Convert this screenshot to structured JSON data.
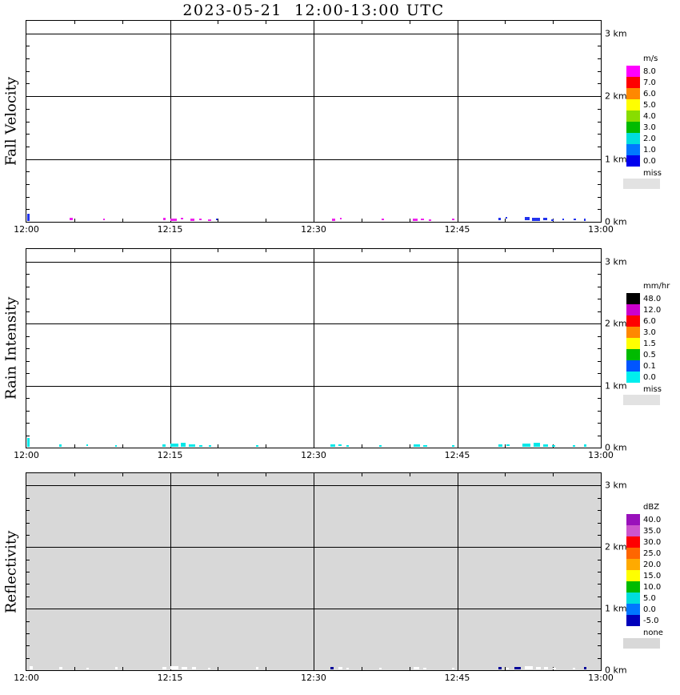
{
  "title": "2023-05-21  12:00-13:00 UTC",
  "axes": {
    "x_ticks": [
      "12:00",
      "12:15",
      "12:30",
      "12:45",
      "13:00"
    ],
    "y_ticks": [
      "0 km",
      "1 km",
      "2 km",
      "3 km"
    ]
  },
  "chart_data": [
    {
      "type": "heatmap",
      "title": "Fall Velocity",
      "ylabel": "Fall Velocity",
      "unit": "m/s",
      "x_ticks": [
        "12:00",
        "12:15",
        "12:30",
        "12:45",
        "13:00"
      ],
      "y_ticks": [
        {
          "km": 0,
          "label": "0 km"
        },
        {
          "km": 1,
          "label": "1 km"
        },
        {
          "km": 2,
          "label": "2 km"
        },
        {
          "km": 3,
          "label": "3 km"
        }
      ],
      "ylim_km": [
        0,
        3.2
      ],
      "grid": true,
      "background": "#ffffff",
      "colorbar": {
        "unit": "m/s",
        "entries": [
          {
            "label": "8.0",
            "color": "#ff00ff"
          },
          {
            "label": "7.0",
            "color": "#ff0000"
          },
          {
            "label": "6.0",
            "color": "#ff8800"
          },
          {
            "label": "5.0",
            "color": "#ffff00"
          },
          {
            "label": "4.0",
            "color": "#88dd00"
          },
          {
            "label": "3.0",
            "color": "#00bb00"
          },
          {
            "label": "2.0",
            "color": "#00dddd"
          },
          {
            "label": "1.0",
            "color": "#0077ff"
          },
          {
            "label": "0.0",
            "color": "#0000ee"
          }
        ],
        "missing": {
          "label": "miss",
          "color": "#e2e2e2"
        }
      },
      "echoes": [
        {
          "x": 0.001,
          "w": 3,
          "h": 9,
          "b": 1,
          "c": "#2233ee"
        },
        {
          "x": 0.076,
          "w": 4,
          "h": 3,
          "b": 2,
          "c": "#ee22ee"
        },
        {
          "x": 0.135,
          "w": 2,
          "h": 2,
          "b": 2,
          "c": "#ee22ee"
        },
        {
          "x": 0.24,
          "w": 3,
          "h": 3,
          "b": 2,
          "c": "#ee22ee"
        },
        {
          "x": 0.252,
          "w": 8,
          "h": 3,
          "b": 1,
          "c": "#ee22ee"
        },
        {
          "x": 0.27,
          "w": 3,
          "h": 2,
          "b": 3,
          "c": "#ee22ee"
        },
        {
          "x": 0.287,
          "w": 5,
          "h": 3,
          "b": 1,
          "c": "#ee22ee"
        },
        {
          "x": 0.302,
          "w": 3,
          "h": 2,
          "b": 2,
          "c": "#ee22ee"
        },
        {
          "x": 0.318,
          "w": 4,
          "h": 2,
          "b": 1,
          "c": "#ee22ee"
        },
        {
          "x": 0.332,
          "w": 2,
          "h": 2,
          "b": 2,
          "c": "#2233ee"
        },
        {
          "x": 0.535,
          "w": 4,
          "h": 3,
          "b": 1,
          "c": "#ee22ee"
        },
        {
          "x": 0.549,
          "w": 2,
          "h": 2,
          "b": 3,
          "c": "#ee22ee"
        },
        {
          "x": 0.622,
          "w": 3,
          "h": 2,
          "b": 2,
          "c": "#ee22ee"
        },
        {
          "x": 0.676,
          "w": 6,
          "h": 3,
          "b": 1,
          "c": "#ee22ee"
        },
        {
          "x": 0.691,
          "w": 4,
          "h": 2,
          "b": 2,
          "c": "#ee22ee"
        },
        {
          "x": 0.704,
          "w": 3,
          "h": 2,
          "b": 1,
          "c": "#ee22ee"
        },
        {
          "x": 0.745,
          "w": 3,
          "h": 2,
          "b": 2,
          "c": "#ee22ee"
        },
        {
          "x": 0.826,
          "w": 3,
          "h": 3,
          "b": 2,
          "c": "#2233ee"
        },
        {
          "x": 0.839,
          "w": 2,
          "h": 2,
          "b": 4,
          "c": "#2233ee"
        },
        {
          "x": 0.872,
          "w": 6,
          "h": 4,
          "b": 2,
          "c": "#2233ee"
        },
        {
          "x": 0.885,
          "w": 10,
          "h": 4,
          "b": 1,
          "c": "#2233ee"
        },
        {
          "x": 0.905,
          "w": 5,
          "h": 3,
          "b": 2,
          "c": "#2233ee"
        },
        {
          "x": 0.919,
          "w": 3,
          "h": 2,
          "b": 1,
          "c": "#2233ee"
        },
        {
          "x": 0.938,
          "w": 2,
          "h": 2,
          "b": 2,
          "c": "#2233ee"
        },
        {
          "x": 0.958,
          "w": 3,
          "h": 2,
          "b": 2,
          "c": "#2233ee"
        },
        {
          "x": 0.976,
          "w": 2,
          "h": 3,
          "b": 1,
          "c": "#2233ee"
        }
      ]
    },
    {
      "type": "heatmap",
      "title": "Rain Intensity",
      "ylabel": "Rain Intensity",
      "unit": "mm/hr",
      "x_ticks": [
        "12:00",
        "12:15",
        "12:30",
        "12:45",
        "13:00"
      ],
      "y_ticks": [
        {
          "km": 0,
          "label": "0 km"
        },
        {
          "km": 1,
          "label": "1 km"
        },
        {
          "km": 2,
          "label": "2 km"
        },
        {
          "km": 3,
          "label": "3 km"
        }
      ],
      "ylim_km": [
        0,
        3.2
      ],
      "grid": true,
      "background": "#ffffff",
      "colorbar": {
        "unit": "mm/hr",
        "entries": [
          {
            "label": "48.0",
            "color": "#000000"
          },
          {
            "label": "12.0",
            "color": "#cc00cc"
          },
          {
            "label": "6.0",
            "color": "#ff0000"
          },
          {
            "label": "3.0",
            "color": "#ff8800"
          },
          {
            "label": "1.5",
            "color": "#ffff00"
          },
          {
            "label": "0.5",
            "color": "#00bb00"
          },
          {
            "label": "0.1",
            "color": "#0055ff"
          },
          {
            "label": "0.0",
            "color": "#00eeee"
          }
        ],
        "missing": {
          "label": "miss",
          "color": "#e2e2e2"
        }
      },
      "echoes": [
        {
          "x": 0.001,
          "w": 3,
          "h": 11,
          "b": 1,
          "c": "#00e8e8"
        },
        {
          "x": 0.058,
          "w": 3,
          "h": 3,
          "b": 1,
          "c": "#00e8e8"
        },
        {
          "x": 0.105,
          "w": 2,
          "h": 2,
          "b": 2,
          "c": "#00e8e8"
        },
        {
          "x": 0.156,
          "w": 2,
          "h": 2,
          "b": 1,
          "c": "#00e8e8"
        },
        {
          "x": 0.238,
          "w": 4,
          "h": 3,
          "b": 1,
          "c": "#00e8e8"
        },
        {
          "x": 0.252,
          "w": 10,
          "h": 4,
          "b": 1,
          "c": "#00e8e8"
        },
        {
          "x": 0.27,
          "w": 6,
          "h": 5,
          "b": 1,
          "c": "#00e8e8"
        },
        {
          "x": 0.285,
          "w": 8,
          "h": 3,
          "b": 1,
          "c": "#00e8e8"
        },
        {
          "x": 0.303,
          "w": 4,
          "h": 2,
          "b": 1,
          "c": "#00e8e8"
        },
        {
          "x": 0.32,
          "w": 3,
          "h": 2,
          "b": 1,
          "c": "#00e8e8"
        },
        {
          "x": 0.402,
          "w": 3,
          "h": 2,
          "b": 1,
          "c": "#00e8e8"
        },
        {
          "x": 0.532,
          "w": 6,
          "h": 3,
          "b": 1,
          "c": "#00e8e8"
        },
        {
          "x": 0.546,
          "w": 4,
          "h": 2,
          "b": 2,
          "c": "#00e8e8"
        },
        {
          "x": 0.56,
          "w": 3,
          "h": 2,
          "b": 1,
          "c": "#00e8e8"
        },
        {
          "x": 0.618,
          "w": 3,
          "h": 2,
          "b": 1,
          "c": "#00e8e8"
        },
        {
          "x": 0.678,
          "w": 8,
          "h": 3,
          "b": 1,
          "c": "#00e8e8"
        },
        {
          "x": 0.695,
          "w": 5,
          "h": 2,
          "b": 1,
          "c": "#00e8e8"
        },
        {
          "x": 0.745,
          "w": 3,
          "h": 2,
          "b": 1,
          "c": "#00e8e8"
        },
        {
          "x": 0.826,
          "w": 5,
          "h": 3,
          "b": 1,
          "c": "#00e8e8"
        },
        {
          "x": 0.84,
          "w": 4,
          "h": 2,
          "b": 2,
          "c": "#00e8e8"
        },
        {
          "x": 0.868,
          "w": 10,
          "h": 4,
          "b": 1,
          "c": "#00e8e8"
        },
        {
          "x": 0.888,
          "w": 8,
          "h": 5,
          "b": 1,
          "c": "#00e8e8"
        },
        {
          "x": 0.905,
          "w": 6,
          "h": 3,
          "b": 1,
          "c": "#00e8e8"
        },
        {
          "x": 0.92,
          "w": 4,
          "h": 2,
          "b": 1,
          "c": "#00e8e8"
        },
        {
          "x": 0.956,
          "w": 3,
          "h": 2,
          "b": 1,
          "c": "#00e8e8"
        },
        {
          "x": 0.976,
          "w": 3,
          "h": 3,
          "b": 1,
          "c": "#00e8e8"
        }
      ]
    },
    {
      "type": "heatmap",
      "title": "Reflectivity",
      "ylabel": "Reflectivity",
      "unit": "dBZ",
      "x_ticks": [
        "12:00",
        "12:15",
        "12:30",
        "12:45",
        "13:00"
      ],
      "y_ticks": [
        {
          "km": 0,
          "label": "0 km"
        },
        {
          "km": 1,
          "label": "1 km"
        },
        {
          "km": 2,
          "label": "2 km"
        },
        {
          "km": 3,
          "label": "3 km"
        }
      ],
      "ylim_km": [
        0,
        3.2
      ],
      "grid": true,
      "background": "#d8d8d8",
      "colorbar": {
        "unit": "dBZ",
        "entries": [
          {
            "label": "40.0",
            "color": "#9911bb"
          },
          {
            "label": "35.0",
            "color": "#cc55cc"
          },
          {
            "label": "30.0",
            "color": "#ff0000"
          },
          {
            "label": "25.0",
            "color": "#ff6600"
          },
          {
            "label": "20.0",
            "color": "#ffaa00"
          },
          {
            "label": "15.0",
            "color": "#ffff00"
          },
          {
            "label": "10.0",
            "color": "#00bb00"
          },
          {
            "label": "5.0",
            "color": "#00dddd"
          },
          {
            "label": "0.0",
            "color": "#0077ff"
          },
          {
            "label": "-5.0",
            "color": "#0000bb"
          }
        ],
        "missing": {
          "label": "none",
          "color": "#d8d8d8"
        }
      },
      "echoes": [
        {
          "x": 0.005,
          "w": 4,
          "h": 4,
          "b": 1,
          "c": "#ffffff"
        },
        {
          "x": 0.058,
          "w": 4,
          "h": 3,
          "b": 1,
          "c": "#ffffff"
        },
        {
          "x": 0.105,
          "w": 3,
          "h": 2,
          "b": 1,
          "c": "#ffffff"
        },
        {
          "x": 0.156,
          "w": 3,
          "h": 3,
          "b": 1,
          "c": "#ffffff"
        },
        {
          "x": 0.238,
          "w": 5,
          "h": 3,
          "b": 1,
          "c": "#ffffff"
        },
        {
          "x": 0.252,
          "w": 10,
          "h": 4,
          "b": 1,
          "c": "#ffffff"
        },
        {
          "x": 0.272,
          "w": 7,
          "h": 3,
          "b": 1,
          "c": "#ffffff"
        },
        {
          "x": 0.29,
          "w": 5,
          "h": 3,
          "b": 1,
          "c": "#ffffff"
        },
        {
          "x": 0.318,
          "w": 3,
          "h": 2,
          "b": 1,
          "c": "#ffffff"
        },
        {
          "x": 0.402,
          "w": 3,
          "h": 3,
          "b": 1,
          "c": "#ffffff"
        },
        {
          "x": 0.532,
          "w": 4,
          "h": 3,
          "b": 1,
          "c": "#000099"
        },
        {
          "x": 0.546,
          "w": 5,
          "h": 3,
          "b": 1,
          "c": "#ffffff"
        },
        {
          "x": 0.56,
          "w": 3,
          "h": 2,
          "b": 1,
          "c": "#ffffff"
        },
        {
          "x": 0.618,
          "w": 3,
          "h": 2,
          "b": 1,
          "c": "#ffffff"
        },
        {
          "x": 0.678,
          "w": 7,
          "h": 3,
          "b": 1,
          "c": "#ffffff"
        },
        {
          "x": 0.695,
          "w": 4,
          "h": 2,
          "b": 1,
          "c": "#ffffff"
        },
        {
          "x": 0.745,
          "w": 3,
          "h": 2,
          "b": 1,
          "c": "#ffffff"
        },
        {
          "x": 0.826,
          "w": 4,
          "h": 3,
          "b": 1,
          "c": "#000099"
        },
        {
          "x": 0.84,
          "w": 3,
          "h": 2,
          "b": 1,
          "c": "#ffffff"
        },
        {
          "x": 0.855,
          "w": 8,
          "h": 3,
          "b": 1,
          "c": "#000099"
        },
        {
          "x": 0.872,
          "w": 10,
          "h": 4,
          "b": 1,
          "c": "#ffffff"
        },
        {
          "x": 0.892,
          "w": 6,
          "h": 3,
          "b": 1,
          "c": "#ffffff"
        },
        {
          "x": 0.906,
          "w": 5,
          "h": 3,
          "b": 1,
          "c": "#ffffff"
        },
        {
          "x": 0.922,
          "w": 4,
          "h": 2,
          "b": 1,
          "c": "#ffffff"
        },
        {
          "x": 0.956,
          "w": 3,
          "h": 2,
          "b": 1,
          "c": "#ffffff"
        },
        {
          "x": 0.976,
          "w": 3,
          "h": 3,
          "b": 1,
          "c": "#000099"
        }
      ]
    }
  ]
}
